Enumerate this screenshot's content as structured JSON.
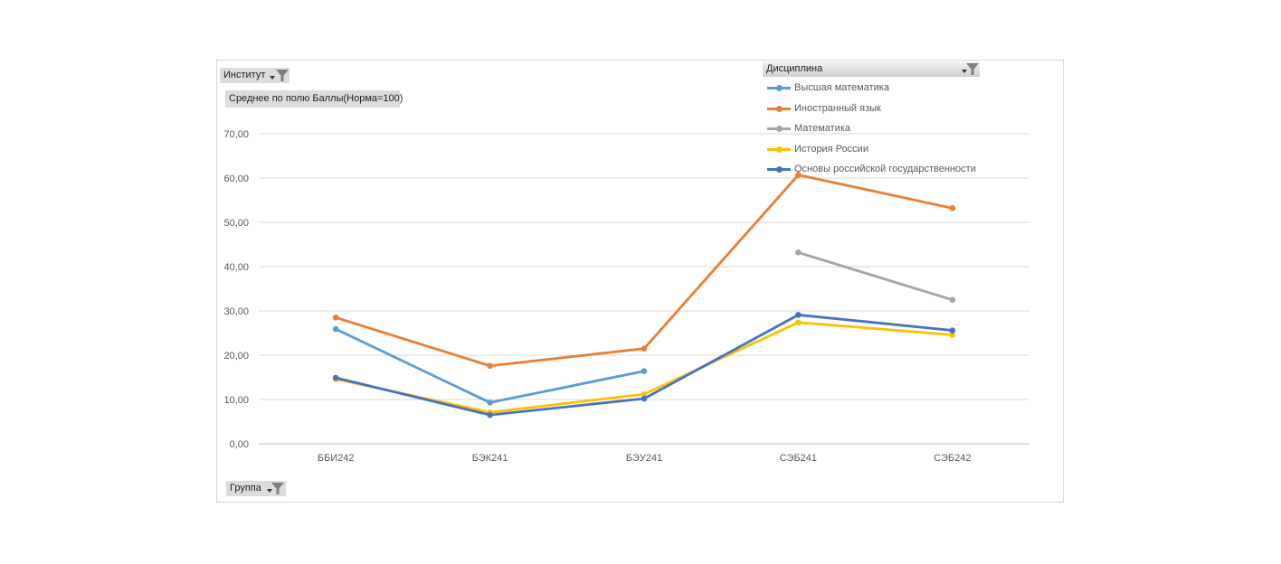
{
  "filters": {
    "institute_label": "Институт",
    "value_field_label": "Среднее по полю Баллы(Норма=100)",
    "legend_field_label": "Дисциплина",
    "axis_field_label": "Группа"
  },
  "chart_data": {
    "type": "line",
    "title": "",
    "xlabel": "",
    "ylabel": "",
    "categories": [
      "ББИ242",
      "БЭК241",
      "БЭУ241",
      "СЭБ241",
      "СЭБ242"
    ],
    "ylim": [
      0,
      70
    ],
    "yticks": [
      "0,00",
      "10,00",
      "20,00",
      "30,00",
      "40,00",
      "50,00",
      "60,00",
      "70,00"
    ],
    "grid": true,
    "legend_position": "top-right",
    "series": [
      {
        "name": "Высшая математика",
        "color": "#5b9bd5",
        "values": [
          25.9,
          9.3,
          16.4,
          null,
          null
        ]
      },
      {
        "name": "Иностранный язык",
        "color": "#ed7d31",
        "values": [
          28.5,
          17.6,
          21.5,
          60.7,
          53.2
        ]
      },
      {
        "name": "Математика",
        "color": "#a5a5a5",
        "values": [
          null,
          null,
          null,
          43.2,
          32.5
        ]
      },
      {
        "name": "История России",
        "color": "#ffc000",
        "values": [
          14.6,
          7.1,
          11.2,
          27.4,
          24.6
        ]
      },
      {
        "name": "Основы российской государственности",
        "color": "#4472c4",
        "values": [
          14.9,
          6.5,
          10.2,
          29.1,
          25.6
        ]
      }
    ]
  }
}
